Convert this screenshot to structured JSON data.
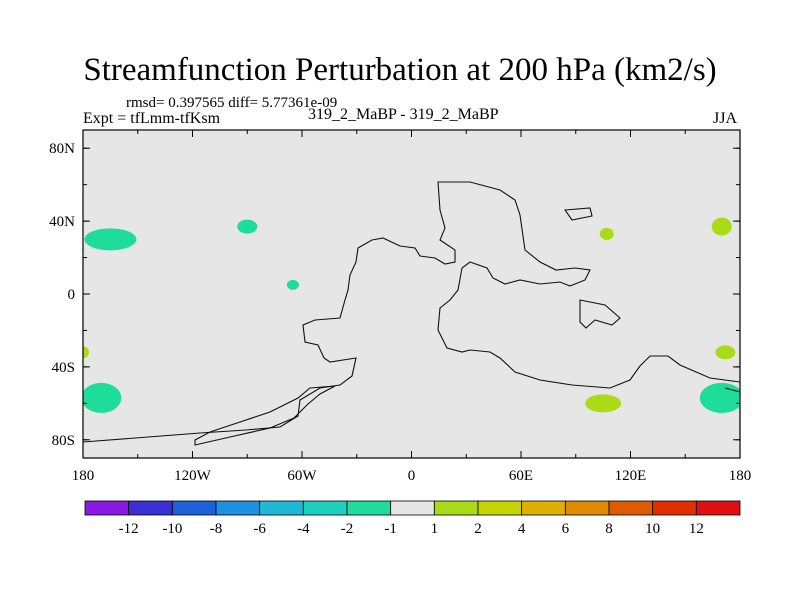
{
  "header": {
    "title": "Streamfunction Perturbation at 200 hPa (km2/s)",
    "stats": "rmsd= 0.397565 diff= 5.77361e-09",
    "experiment": "Expt = tfLmm-tfKsm",
    "center_label": "319_2_MaBP - 319_2_MaBP",
    "season": "JJA"
  },
  "chart_data": {
    "type": "contour-map",
    "title": "Streamfunction Perturbation at 200 hPa (km2/s)",
    "x_axis": {
      "range": [
        -180,
        180
      ],
      "ticks": [
        -180,
        -120,
        -60,
        0,
        60,
        120,
        180
      ],
      "tick_labels": [
        "180",
        "120W",
        "60W",
        "0",
        "60E",
        "120E",
        "180"
      ]
    },
    "y_axis": {
      "range": [
        -90,
        90
      ],
      "ticks": [
        80,
        40,
        0,
        -40,
        -80
      ],
      "tick_labels": [
        "80N",
        "40N",
        "0",
        "40S",
        "80S"
      ]
    },
    "colorbar": {
      "colors": [
        "#8a19e6",
        "#3b2fd6",
        "#1e60d9",
        "#1e90e0",
        "#1fb8d8",
        "#1dd0c0",
        "#1edc9a",
        "#e6e6e6",
        "#a8dc16",
        "#c8d400",
        "#e0b000",
        "#e08a00",
        "#e05a00",
        "#e03000",
        "#e01010"
      ],
      "labels": [
        "-12",
        "-10",
        "-8",
        "-6",
        "-4",
        "-2",
        "-1",
        "1",
        "2",
        "4",
        "6",
        "8",
        "10",
        "12"
      ]
    },
    "features": [
      {
        "name": "negative-blob-1",
        "sign": "-",
        "level_band": "-2 to -1",
        "lon": -165,
        "lat": 30,
        "color": "#1edc9a"
      },
      {
        "name": "negative-blob-2",
        "sign": "-",
        "level_band": "-2 to -1",
        "lon": -90,
        "lat": 37,
        "color": "#1edc9a"
      },
      {
        "name": "negative-blob-3",
        "sign": "-",
        "level_band": "-2 to -1",
        "lon": -65,
        "lat": 5,
        "color": "#1edc9a"
      },
      {
        "name": "negative-blob-4",
        "sign": "-",
        "level_band": "-2 to -1",
        "lon": -170,
        "lat": -57,
        "color": "#1edc9a"
      },
      {
        "name": "negative-blob-5",
        "sign": "-",
        "level_band": "-2 to -1",
        "lon": 170,
        "lat": -57,
        "color": "#1edc9a"
      },
      {
        "name": "positive-blob-1",
        "sign": "+",
        "level_band": "1 to 2",
        "lon": 105,
        "lat": -60,
        "color": "#a8dc16"
      },
      {
        "name": "positive-blob-2",
        "sign": "+",
        "level_band": "1 to 2",
        "lon": 172,
        "lat": -32,
        "color": "#a8dc16"
      },
      {
        "name": "positive-blob-3",
        "sign": "+",
        "level_band": "1 to 2",
        "lon": 170,
        "lat": 37,
        "color": "#a8dc16"
      },
      {
        "name": "positive-blob-4",
        "sign": "+",
        "level_band": "1 to 2",
        "lon": 107,
        "lat": 33,
        "color": "#a8dc16"
      },
      {
        "name": "positive-blob-5",
        "sign": "+",
        "level_band": "1 to 2",
        "lon": -180,
        "lat": -32,
        "color": "#a8dc16"
      }
    ],
    "background_color": "#e6e6e6"
  }
}
